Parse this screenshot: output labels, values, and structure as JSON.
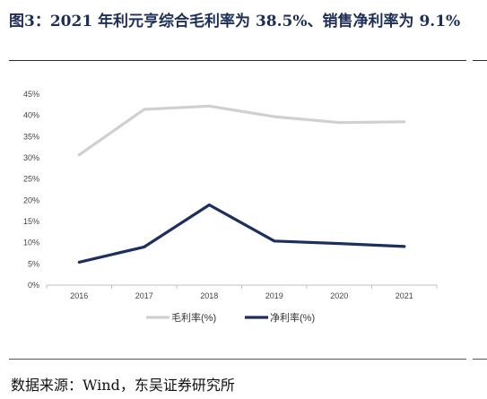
{
  "header": {
    "title": "图3：2021 年利元亨综合毛利率为 38.5%、销售净利率为 9.1%"
  },
  "footer": {
    "source": "数据来源：Wind，东吴证券研究所"
  },
  "chart_data": {
    "type": "line",
    "title": "图3：2021 年利元亨综合毛利率为 38.5%、销售净利率为 9.1%",
    "categories": [
      "2016",
      "2017",
      "2018",
      "2019",
      "2020",
      "2021"
    ],
    "series": [
      {
        "name": "毛利率(%)",
        "color": "#d0d0d0",
        "values": [
          30.7,
          41.4,
          42.2,
          39.7,
          38.3,
          38.5
        ]
      },
      {
        "name": "净利率(%)",
        "color": "#1d2f5e",
        "values": [
          5.4,
          9.0,
          18.9,
          10.4,
          9.8,
          9.1
        ]
      }
    ],
    "y_ticks": [
      "0%",
      "5%",
      "10%",
      "15%",
      "20%",
      "25%",
      "30%",
      "35%",
      "40%",
      "45%"
    ],
    "ylim": [
      0,
      45
    ],
    "grid": false,
    "legend_position": "bottom-center"
  }
}
